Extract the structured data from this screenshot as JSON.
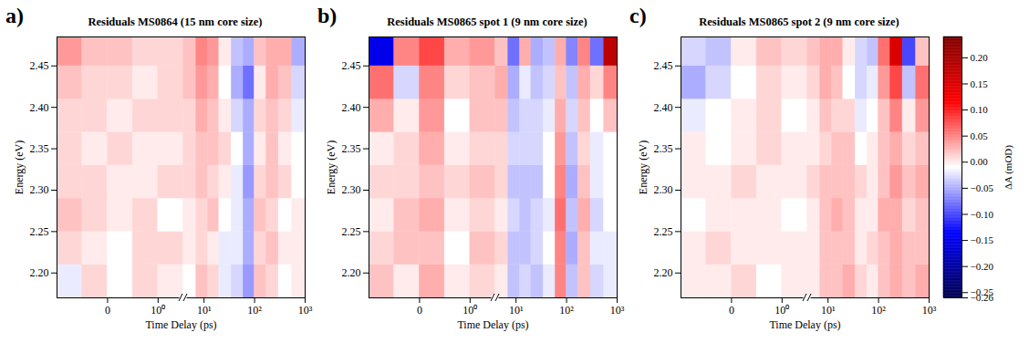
{
  "chart_data": [
    {
      "type": "heatmap",
      "panel": "a)",
      "title": "Residuals MS0864 (15 nm core size)",
      "xlabel": "Time Delay (ps)",
      "ylabel": "Energy (eV)",
      "xlim": [
        -1,
        1000
      ],
      "xticks": [
        {
          "value": 0,
          "label": "0"
        },
        {
          "value": 1,
          "label": "10⁰"
        },
        {
          "value": 10,
          "label": "10¹"
        },
        {
          "value": 100,
          "label": "10²"
        },
        {
          "value": 1000,
          "label": "10³"
        }
      ],
      "ylim": [
        2.17,
        2.485
      ],
      "yticks": [
        {
          "value": 2.2,
          "label": "2.20"
        },
        {
          "value": 2.25,
          "label": "2.25"
        },
        {
          "value": 2.3,
          "label": "2.30"
        },
        {
          "value": 2.35,
          "label": "2.35"
        },
        {
          "value": 2.4,
          "label": "2.40"
        },
        {
          "value": 2.45,
          "label": "2.45"
        }
      ],
      "x": [
        -1,
        -0.5,
        0,
        0.5,
        1,
        1.5,
        7,
        12,
        20,
        35,
        60,
        100,
        170,
        300,
        550,
        1000
      ],
      "y": [
        2.17,
        2.21,
        2.25,
        2.29,
        2.33,
        2.37,
        2.41,
        2.45,
        2.485
      ],
      "cells": [
        [
          -0.02,
          0.01,
          -0.01,
          0.01,
          0.0,
          -0.01,
          0.02,
          0.01,
          -0.02,
          -0.03,
          -0.06,
          0.02,
          0.01,
          -0.01,
          0.0
        ],
        [
          0.01,
          0.0,
          -0.01,
          0.01,
          0.01,
          0.0,
          0.01,
          0.0,
          -0.02,
          -0.02,
          -0.05,
          0.01,
          0.02,
          0.0,
          0.0
        ],
        [
          0.02,
          0.01,
          0.0,
          0.01,
          -0.01,
          0.0,
          0.01,
          0.02,
          -0.01,
          -0.02,
          -0.05,
          0.02,
          0.01,
          -0.01,
          0.0
        ],
        [
          0.01,
          0.01,
          0.0,
          0.0,
          0.01,
          0.01,
          0.02,
          0.01,
          0.0,
          -0.02,
          -0.06,
          0.01,
          0.02,
          0.01,
          -0.01
        ],
        [
          0.01,
          0.0,
          0.01,
          0.0,
          0.0,
          0.01,
          0.02,
          0.02,
          0.01,
          -0.01,
          -0.05,
          0.0,
          0.02,
          0.0,
          -0.01
        ],
        [
          0.01,
          0.01,
          0.0,
          0.01,
          0.01,
          0.01,
          0.03,
          0.02,
          0.0,
          -0.03,
          -0.05,
          0.01,
          0.02,
          0.01,
          -0.02
        ],
        [
          0.02,
          0.01,
          0.01,
          0.0,
          0.01,
          0.02,
          0.04,
          0.03,
          -0.01,
          -0.05,
          -0.08,
          0.0,
          0.03,
          0.02,
          -0.03
        ],
        [
          0.04,
          0.02,
          0.02,
          0.01,
          0.01,
          0.02,
          0.05,
          0.04,
          0.0,
          -0.04,
          -0.05,
          0.02,
          0.03,
          0.03,
          -0.05
        ]
      ]
    },
    {
      "type": "heatmap",
      "panel": "b)",
      "title": "Residuals MS0865 spot 1 (9 nm core size)",
      "xlabel": "Time Delay (ps)",
      "ylabel": "Energy (eV)",
      "xlim": [
        -1,
        1000
      ],
      "xticks": [
        {
          "value": 0,
          "label": "0"
        },
        {
          "value": 1,
          "label": "10⁰"
        },
        {
          "value": 10,
          "label": "10¹"
        },
        {
          "value": 100,
          "label": "10²"
        },
        {
          "value": 1000,
          "label": "10³"
        }
      ],
      "ylim": [
        2.17,
        2.485
      ],
      "yticks": [
        {
          "value": 2.2,
          "label": "2.20"
        },
        {
          "value": 2.25,
          "label": "2.25"
        },
        {
          "value": 2.3,
          "label": "2.30"
        },
        {
          "value": 2.35,
          "label": "2.35"
        },
        {
          "value": 2.4,
          "label": "2.40"
        },
        {
          "value": 2.45,
          "label": "2.45"
        }
      ],
      "x": [
        -1,
        -0.5,
        0,
        0.5,
        1,
        1.5,
        7,
        12,
        20,
        35,
        60,
        100,
        170,
        300,
        550,
        1000
      ],
      "y": [
        2.17,
        2.21,
        2.25,
        2.29,
        2.33,
        2.37,
        2.41,
        2.45,
        2.485
      ],
      "cells": [
        [
          0.02,
          0.0,
          0.03,
          0.0,
          0.01,
          0.0,
          -0.04,
          -0.03,
          -0.04,
          -0.02,
          0.05,
          -0.04,
          0.02,
          -0.03,
          -0.02
        ],
        [
          0.01,
          0.02,
          0.02,
          -0.01,
          0.02,
          0.01,
          -0.04,
          -0.04,
          -0.03,
          -0.01,
          0.05,
          -0.05,
          0.02,
          -0.02,
          -0.02
        ],
        [
          0.0,
          0.02,
          0.03,
          0.0,
          0.01,
          0.0,
          -0.03,
          -0.04,
          -0.03,
          -0.02,
          0.06,
          -0.04,
          0.03,
          -0.03,
          -0.01
        ],
        [
          0.01,
          0.01,
          0.02,
          0.01,
          0.02,
          0.01,
          -0.04,
          -0.04,
          -0.04,
          -0.01,
          0.05,
          -0.05,
          0.02,
          -0.02,
          -0.01
        ],
        [
          0.0,
          0.01,
          0.03,
          0.0,
          0.01,
          0.01,
          -0.03,
          -0.03,
          -0.03,
          -0.01,
          0.04,
          -0.04,
          0.01,
          -0.02,
          -0.01
        ],
        [
          0.03,
          0.0,
          0.04,
          -0.01,
          0.02,
          0.02,
          -0.04,
          -0.03,
          -0.03,
          -0.02,
          0.03,
          -0.03,
          0.02,
          -0.01,
          0.02
        ],
        [
          0.06,
          -0.03,
          0.05,
          0.01,
          0.02,
          0.03,
          -0.05,
          -0.02,
          -0.04,
          -0.03,
          0.02,
          -0.04,
          0.03,
          0.01,
          0.05
        ],
        [
          -0.15,
          0.05,
          0.08,
          0.03,
          0.04,
          0.02,
          -0.08,
          0.03,
          -0.05,
          -0.04,
          0.03,
          -0.07,
          0.05,
          -0.08,
          0.18
        ]
      ]
    },
    {
      "type": "heatmap",
      "panel": "c)",
      "title": "Residuals MS0865 spot 2 (9 nm core size)",
      "xlabel": "Time Delay (ps)",
      "ylabel": "Energy (eV)",
      "xlim": [
        -1,
        1000
      ],
      "xticks": [
        {
          "value": 0,
          "label": "0"
        },
        {
          "value": 1,
          "label": "10⁰"
        },
        {
          "value": 10,
          "label": "10¹"
        },
        {
          "value": 100,
          "label": "10²"
        },
        {
          "value": 1000,
          "label": "10³"
        }
      ],
      "ylim": [
        2.17,
        2.485
      ],
      "yticks": [
        {
          "value": 2.2,
          "label": "2.20"
        },
        {
          "value": 2.25,
          "label": "2.25"
        },
        {
          "value": 2.3,
          "label": "2.30"
        },
        {
          "value": 2.35,
          "label": "2.35"
        },
        {
          "value": 2.4,
          "label": "2.40"
        },
        {
          "value": 2.45,
          "label": "2.45"
        }
      ],
      "x": [
        -1,
        -0.5,
        0,
        0.5,
        1,
        1.5,
        7,
        12,
        20,
        35,
        60,
        100,
        170,
        300,
        550,
        1000
      ],
      "y": [
        2.17,
        2.21,
        2.25,
        2.29,
        2.33,
        2.37,
        2.41,
        2.45,
        2.485
      ],
      "cells": [
        [
          0.0,
          0.0,
          0.01,
          -0.01,
          0.0,
          0.0,
          0.02,
          0.02,
          0.03,
          0.01,
          0.0,
          0.02,
          0.03,
          0.02,
          0.03
        ],
        [
          0.0,
          0.01,
          0.0,
          0.0,
          0.0,
          0.0,
          0.02,
          0.02,
          0.02,
          0.0,
          0.01,
          0.02,
          0.03,
          0.02,
          0.02
        ],
        [
          -0.01,
          0.0,
          0.0,
          0.0,
          -0.01,
          0.0,
          0.02,
          0.03,
          0.02,
          0.0,
          0.0,
          0.03,
          0.03,
          0.01,
          0.02
        ],
        [
          0.0,
          0.0,
          0.01,
          0.0,
          0.0,
          0.01,
          0.02,
          0.02,
          0.02,
          0.01,
          0.0,
          0.02,
          0.04,
          0.02,
          0.03
        ],
        [
          0.0,
          -0.01,
          0.0,
          0.01,
          0.0,
          0.0,
          0.01,
          0.02,
          0.02,
          -0.01,
          0.0,
          0.02,
          0.03,
          0.01,
          0.02
        ],
        [
          -0.02,
          -0.01,
          0.0,
          0.01,
          -0.01,
          0.0,
          0.02,
          0.01,
          0.01,
          -0.02,
          -0.01,
          0.02,
          0.05,
          0.0,
          0.04
        ],
        [
          -0.05,
          -0.03,
          -0.01,
          0.01,
          0.0,
          0.01,
          0.03,
          0.02,
          -0.01,
          -0.03,
          -0.02,
          0.04,
          0.08,
          -0.04,
          0.06
        ],
        [
          -0.03,
          -0.04,
          0.0,
          0.02,
          0.01,
          0.02,
          0.03,
          0.03,
          0.0,
          -0.03,
          -0.04,
          0.06,
          0.15,
          -0.1,
          0.02
        ]
      ]
    }
  ],
  "color_bar": {
    "label": "ΔA (mOD)",
    "lim": [
      -0.26,
      0.24
    ],
    "ticks": [
      {
        "value": 0.2,
        "label": "0.20"
      },
      {
        "value": 0.15,
        "label": "0.15"
      },
      {
        "value": 0.1,
        "label": "0.10"
      },
      {
        "value": 0.05,
        "label": "0.05"
      },
      {
        "value": 0,
        "label": "0.00"
      },
      {
        "value": -0.05,
        "label": "−0.05"
      },
      {
        "value": -0.1,
        "label": "−0.10"
      },
      {
        "value": -0.15,
        "label": "−0.15"
      },
      {
        "value": -0.2,
        "label": "−0.20"
      },
      {
        "value": -0.25,
        "label": "−0.25"
      },
      {
        "value": -0.26,
        "label": "−0.26"
      }
    ]
  }
}
